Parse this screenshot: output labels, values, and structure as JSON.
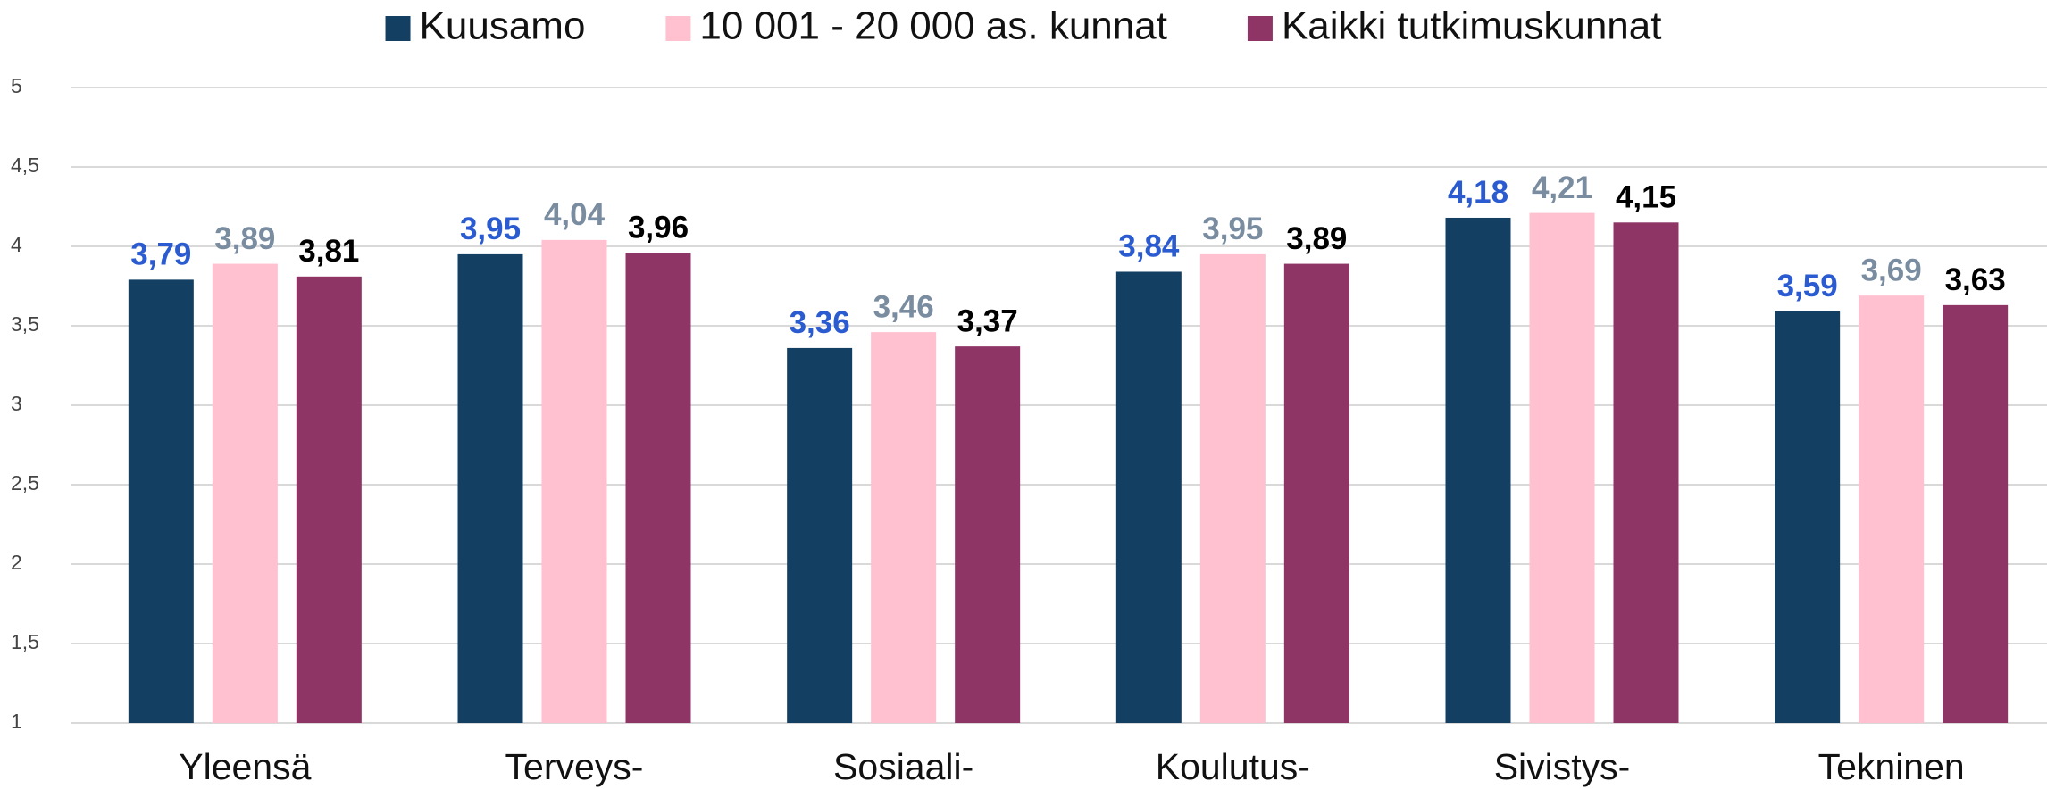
{
  "chart_data": {
    "type": "bar",
    "categories": [
      "Yleensä",
      "Terveys-",
      "Sosiaali-",
      "Koulutus-",
      "Sivistys-",
      "Tekninen"
    ],
    "series": [
      {
        "name": "Kuusamo",
        "color": "#133f63",
        "label_color": "#2a5bd0",
        "values": [
          3.79,
          3.95,
          3.36,
          3.84,
          4.18,
          3.59
        ],
        "value_labels": [
          "3,79",
          "3,95",
          "3,36",
          "3,84",
          "4,18",
          "3,59"
        ]
      },
      {
        "name": "10 001 - 20 000 as. kunnat",
        "color": "#ffc0cf",
        "label_color": "#7a8ca0",
        "values": [
          3.89,
          4.04,
          3.46,
          3.95,
          4.21,
          3.69
        ],
        "value_labels": [
          "3,89",
          "4,04",
          "3,46",
          "3,95",
          "4,21",
          "3,69"
        ]
      },
      {
        "name": "Kaikki tutkimuskunnat",
        "color": "#8e3566",
        "label_color": "#000000",
        "values": [
          3.81,
          3.96,
          3.37,
          3.89,
          4.15,
          3.63
        ],
        "value_labels": [
          "3,81",
          "3,96",
          "3,37",
          "3,89",
          "4,15",
          "3,63"
        ]
      }
    ],
    "ylim": [
      1,
      5
    ],
    "yticks": [
      1,
      {
        "value": 1.5,
        "label": "1,5"
      },
      2,
      {
        "value": 2.5,
        "label": "2,5"
      },
      3,
      {
        "value": 3.5,
        "label": "3,5"
      },
      4,
      {
        "value": 4.5,
        "label": "4,5"
      },
      5
    ],
    "grid": true,
    "legend": "top"
  }
}
